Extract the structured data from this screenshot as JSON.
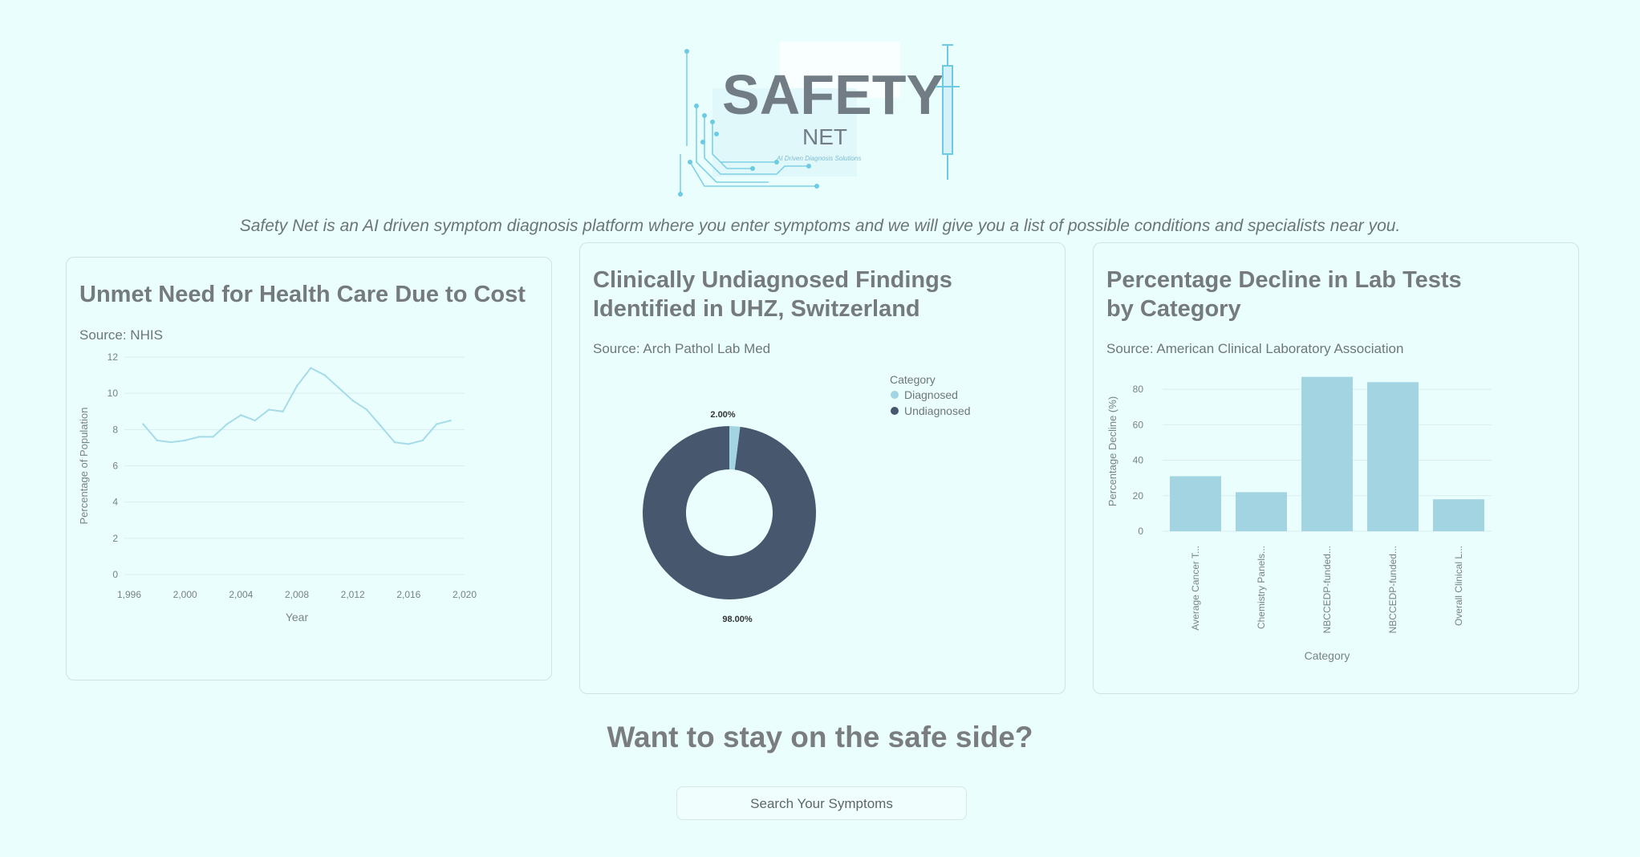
{
  "header": {
    "logo_title": "SAFETY",
    "logo_sub": "NET",
    "logo_tagline": "AI Driven Diagnosis Solutions",
    "tagline": "Safety Net is an AI driven symptom diagnosis platform where you enter symptoms and we will give you a list of possible conditions and specialists near you."
  },
  "cards": [
    {
      "title": "Unmet Need for Health Care Due to Cost",
      "source": "Source: NHIS"
    },
    {
      "title": "Clinically Undiagnosed Findings Identified in UHZ, Switzerland",
      "source": "Source: Arch Pathol Lab Med"
    },
    {
      "title": "Percentage Decline in Lab Tests by Category",
      "source": "Source: American Clinical Laboratory Association"
    }
  ],
  "cta": {
    "title": "Want to stay on the safe side?",
    "button": "Search Your Symptoms"
  },
  "colors": {
    "background": "#eafefe",
    "line": "#a6dbe8",
    "donut_dark": "#47586e",
    "donut_light": "#a2d4e2",
    "bar": "#a2d4e2"
  },
  "chart_data": [
    {
      "type": "line",
      "xlabel": "Year",
      "ylabel": "Percentage of Population",
      "x_ticks": [
        "1,996",
        "2,000",
        "2,004",
        "2,008",
        "2,012",
        "2,016",
        "2,020"
      ],
      "y_ticks": [
        "0",
        "2",
        "4",
        "6",
        "8",
        "10",
        "12"
      ],
      "xlim": [
        1996,
        2020
      ],
      "ylim": [
        0,
        12
      ],
      "x": [
        1997,
        1998,
        1999,
        2000,
        2001,
        2002,
        2003,
        2004,
        2005,
        2006,
        2007,
        2008,
        2009,
        2010,
        2011,
        2012,
        2013,
        2014,
        2015,
        2016,
        2017,
        2018,
        2019
      ],
      "values": [
        8.3,
        7.4,
        7.3,
        7.4,
        7.6,
        7.6,
        8.3,
        8.8,
        8.5,
        9.1,
        9.0,
        10.4,
        11.4,
        11.0,
        10.3,
        9.6,
        9.1,
        8.2,
        7.3,
        7.2,
        7.4,
        8.3,
        8.5
      ]
    },
    {
      "type": "pie",
      "legend_title": "Category",
      "legend_position": "top-right",
      "categories": [
        "Diagnosed",
        "Undiagnosed"
      ],
      "values": [
        2.0,
        98.0
      ],
      "labels": [
        "2.00%",
        "98.00%"
      ]
    },
    {
      "type": "bar",
      "xlabel": "Category",
      "ylabel": "Percentage Decline (%)",
      "categories": [
        "Average Cancer T...",
        "Chemistry Panels...",
        "NBCCEDP-funded...",
        "NBCCEDP-funded...",
        "Overall Clinical L..."
      ],
      "values": [
        31,
        22,
        87,
        84,
        18
      ],
      "y_ticks": [
        "0",
        "20",
        "40",
        "60",
        "80"
      ],
      "ylim": [
        0,
        90
      ]
    }
  ]
}
